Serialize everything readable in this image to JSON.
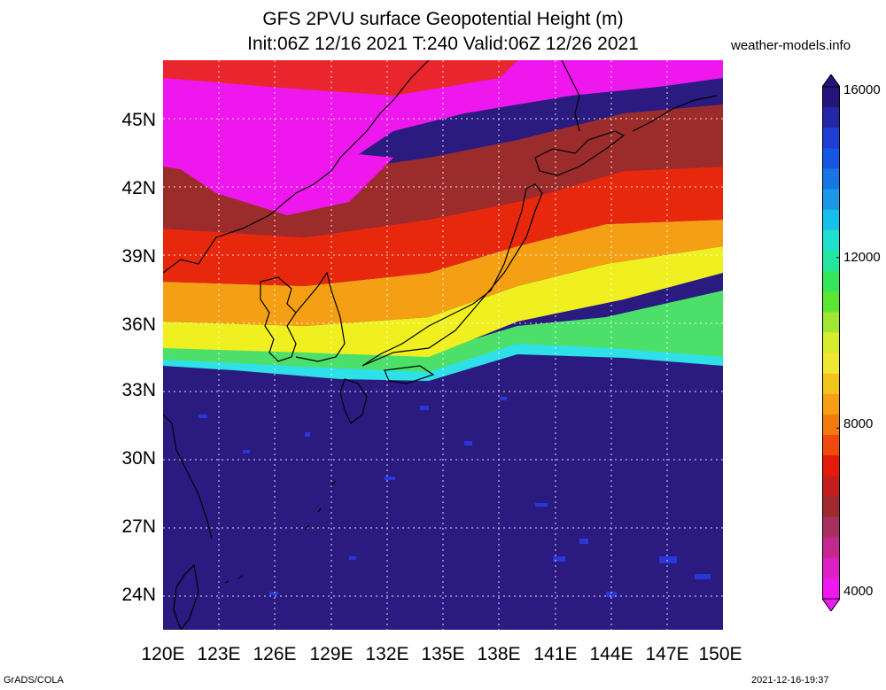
{
  "header": {
    "title_line1": "GFS 2PVU surface Geopotential Height (m)",
    "title_line2": "Init:06Z 12/16 2021 T:240 Valid:06Z 12/26 2021",
    "site": "weather-models.info"
  },
  "footer": {
    "left": "GrADS/COLA",
    "right": "2021-12-16-19:37"
  },
  "axes": {
    "lat_labels": [
      "45N",
      "42N",
      "39N",
      "36N",
      "33N",
      "30N",
      "27N",
      "24N"
    ],
    "lon_labels": [
      "120E",
      "123E",
      "126E",
      "129E",
      "132E",
      "135E",
      "138E",
      "141E",
      "144E",
      "147E",
      "150E"
    ],
    "lon_range": [
      120,
      150
    ],
    "lat_range": [
      22.5,
      47.5
    ]
  },
  "colorbar": {
    "labels": [
      "16000",
      "12000",
      "8000",
      "4000"
    ],
    "colors_top_to_bottom": [
      "#23157a",
      "#2626a8",
      "#1e3dd2",
      "#1656e0",
      "#1875e6",
      "#1b97ea",
      "#17c0e8",
      "#1ee0cc",
      "#22e6a0",
      "#33e65a",
      "#5ce632",
      "#a0e632",
      "#d8ec2e",
      "#f0e830",
      "#f3c41c",
      "#f5a014",
      "#f37a10",
      "#f04a0c",
      "#e61a0a",
      "#c41e1e",
      "#a02a30",
      "#a83060",
      "#c4288c",
      "#dc20c4",
      "#f018f0"
    ]
  },
  "colors": {
    "deep_purple": "#2b1a80",
    "blue_speckle": "#2838d8",
    "cyan": "#2ee0e8",
    "green": "#4ce06a",
    "yellow": "#f0f020",
    "orange": "#f5a014",
    "red": "#e8280c",
    "maroon": "#9c2c2c",
    "magenta": "#ee18ee",
    "coast": "#000000"
  }
}
